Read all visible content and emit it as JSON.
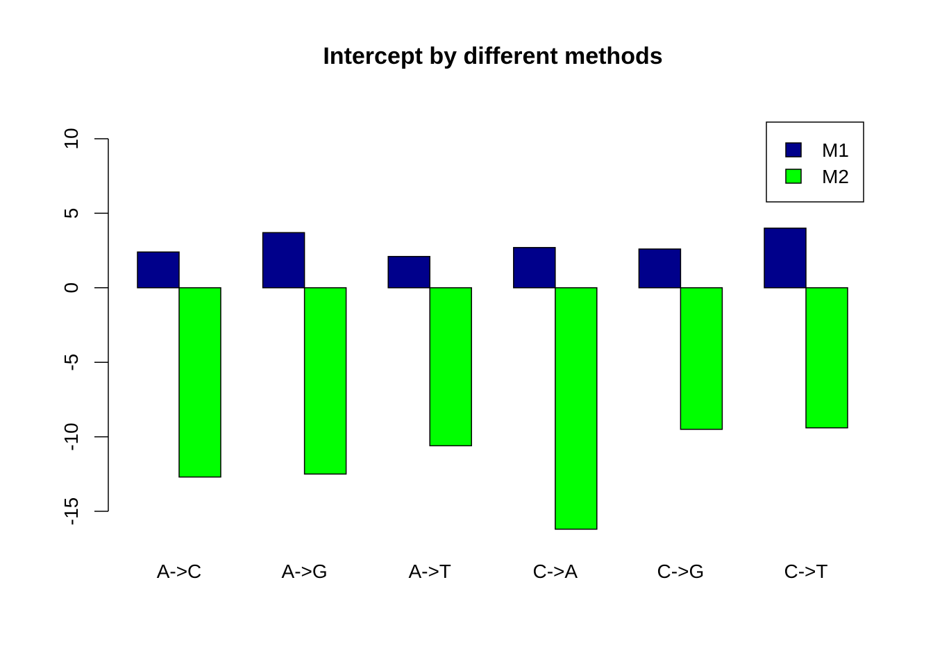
{
  "chart_data": {
    "type": "bar",
    "title": "Intercept by  different methods",
    "xlabel": "",
    "ylabel": "",
    "categories": [
      "A->C",
      "A->G",
      "A->T",
      "C->A",
      "C->G",
      "C->T"
    ],
    "series": [
      {
        "name": "M1",
        "color": "#00008B",
        "values": [
          2.4,
          3.7,
          2.1,
          2.7,
          2.6,
          4.0
        ]
      },
      {
        "name": "M2",
        "color": "#00FF00",
        "values": [
          -12.7,
          -12.5,
          -10.6,
          -16.2,
          -9.5,
          -9.4
        ]
      }
    ],
    "ylim": [
      -15,
      10
    ],
    "yticks": [
      -15,
      -10,
      -5,
      0,
      5,
      10
    ],
    "grid": false,
    "legend": {
      "position": "top-right"
    }
  }
}
